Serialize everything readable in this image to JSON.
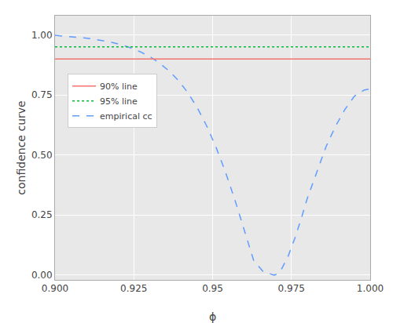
{
  "chart_data": {
    "type": "line",
    "title": "",
    "xlabel": "ϕ",
    "ylabel": "confidence curve",
    "xlim": [
      0.9,
      1.0
    ],
    "ylim": [
      -0.02,
      1.08
    ],
    "xticks": [
      {
        "value": 0.9,
        "label": "0.900"
      },
      0.925,
      0.95,
      0.975,
      {
        "value": 1.0,
        "label": "1.000"
      }
    ],
    "yticks": [
      {
        "value": 0.0,
        "label": "0.00"
      },
      0.25,
      {
        "value": 0.5,
        "label": "0.50"
      },
      0.75,
      {
        "value": 1.0,
        "label": "1.00"
      }
    ],
    "grid": true,
    "legend": "upper left",
    "series": [
      {
        "name": "90% line",
        "type": "hline",
        "color": "#F4736E",
        "line_style": "solid",
        "values": [
          0.9
        ]
      },
      {
        "name": "95% line",
        "type": "hline",
        "color": "#00BA38",
        "line_style": "dotted",
        "values": [
          0.95
        ]
      },
      {
        "name": "empirical cc",
        "type": "line",
        "color": "#619CFF",
        "line_style": "dashed",
        "x": [
          0.9,
          0.903,
          0.906,
          0.909,
          0.912,
          0.915,
          0.918,
          0.921,
          0.924,
          0.927,
          0.93,
          0.933,
          0.936,
          0.939,
          0.942,
          0.945,
          0.948,
          0.951,
          0.954,
          0.957,
          0.96,
          0.963,
          0.966,
          0.969,
          0.9695,
          0.97,
          0.971,
          0.972,
          0.974,
          0.976,
          0.978,
          0.98,
          0.983,
          0.986,
          0.989,
          0.992,
          0.995,
          0.998,
          1.0
        ],
        "values": [
          0.998,
          0.995,
          0.992,
          0.988,
          0.983,
          0.977,
          0.969,
          0.959,
          0.946,
          0.93,
          0.91,
          0.884,
          0.852,
          0.812,
          0.762,
          0.7,
          0.624,
          0.535,
          0.432,
          0.316,
          0.19,
          0.062,
          0.015,
          0.001,
          0.0,
          0.002,
          0.01,
          0.028,
          0.08,
          0.15,
          0.23,
          0.318,
          0.43,
          0.535,
          0.62,
          0.69,
          0.745,
          0.77,
          0.775
        ]
      }
    ]
  }
}
